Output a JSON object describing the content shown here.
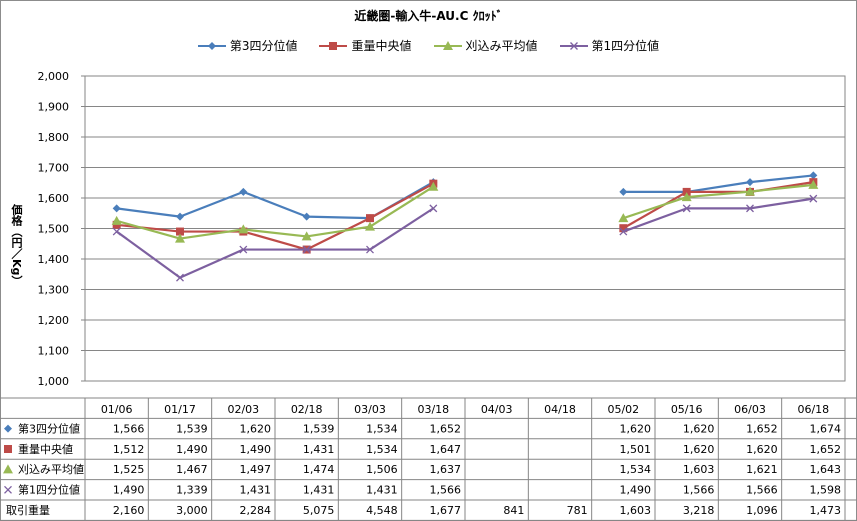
{
  "chart_data": {
    "type": "line",
    "title": "近畿圏-輸入牛-AU.C ｸﾛｯﾄﾞ",
    "ylabel": "価格（円／Kg）",
    "ylim": [
      1000,
      2000
    ],
    "yticks": [
      "1,000",
      "1,100",
      "1,200",
      "1,300",
      "1,400",
      "1,500",
      "1,600",
      "1,700",
      "1,800",
      "1,900",
      "2,000"
    ],
    "categories": [
      "01/06",
      "01/17",
      "02/03",
      "02/18",
      "03/03",
      "03/18",
      "04/03",
      "04/18",
      "05/02",
      "05/16",
      "06/03",
      "06/18"
    ],
    "series": [
      {
        "name": "第3四分位値",
        "color": "#4a7ebb",
        "marker": "diamond",
        "values": [
          1566,
          1539,
          1620,
          1539,
          1534,
          1652,
          null,
          null,
          1620,
          1620,
          1652,
          1674
        ],
        "labels": [
          "1,566",
          "1,539",
          "1,620",
          "1,539",
          "1,534",
          "1,652",
          "",
          "",
          "1,620",
          "1,620",
          "1,652",
          "1,674"
        ]
      },
      {
        "name": "重量中央値",
        "color": "#be4b48",
        "marker": "square",
        "values": [
          1512,
          1490,
          1490,
          1431,
          1534,
          1647,
          null,
          null,
          1501,
          1620,
          1620,
          1652
        ],
        "labels": [
          "1,512",
          "1,490",
          "1,490",
          "1,431",
          "1,534",
          "1,647",
          "",
          "",
          "1,501",
          "1,620",
          "1,620",
          "1,652"
        ]
      },
      {
        "name": "刈込み平均値",
        "color": "#98b954",
        "marker": "triangle",
        "values": [
          1525,
          1467,
          1497,
          1474,
          1506,
          1637,
          null,
          null,
          1534,
          1603,
          1621,
          1643
        ],
        "labels": [
          "1,525",
          "1,467",
          "1,497",
          "1,474",
          "1,506",
          "1,637",
          "",
          "",
          "1,534",
          "1,603",
          "1,621",
          "1,643"
        ]
      },
      {
        "name": "第1四分位値",
        "color": "#7d60a0",
        "marker": "x",
        "values": [
          1490,
          1339,
          1431,
          1431,
          1431,
          1566,
          null,
          null,
          1490,
          1566,
          1566,
          1598
        ],
        "labels": [
          "1,490",
          "1,339",
          "1,431",
          "1,431",
          "1,431",
          "1,566",
          "",
          "",
          "1,490",
          "1,566",
          "1,566",
          "1,598"
        ]
      }
    ],
    "table_extra_row": {
      "name": "取引重量",
      "labels": [
        "2,160",
        "3,000",
        "2,284",
        "5,075",
        "4,548",
        "1,677",
        "841",
        "781",
        "1,603",
        "3,218",
        "1,096",
        "1,473"
      ]
    },
    "grid": true,
    "legend": "top"
  }
}
